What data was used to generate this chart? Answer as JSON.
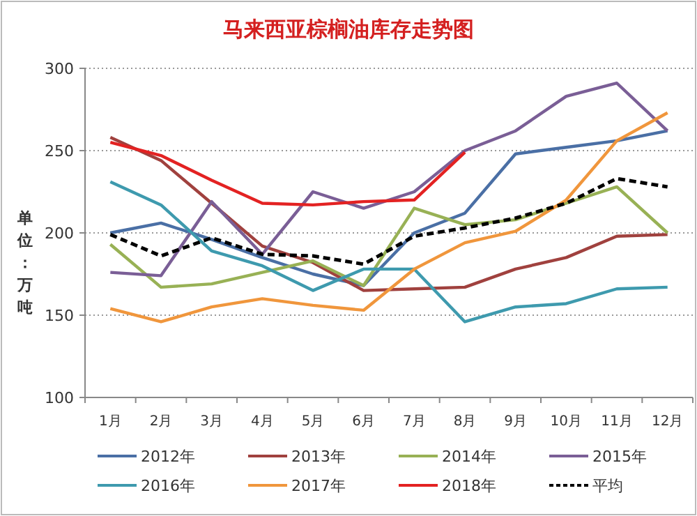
{
  "chart_data": {
    "type": "line",
    "title": "马来西亚棕榈油库存走势图",
    "ylabel": "单位：万吨",
    "categories": [
      "1月",
      "2月",
      "3月",
      "4月",
      "5月",
      "6月",
      "7月",
      "8月",
      "9月",
      "10月",
      "11月",
      "12月"
    ],
    "ylim": [
      100,
      300
    ],
    "yticks": [
      100,
      150,
      200,
      250,
      300
    ],
    "grid": "y",
    "legend": "bottom",
    "line_style": "solid",
    "series": [
      {
        "name": "2012年",
        "color": "#4a6fa5",
        "values": [
          200,
          206,
          196,
          185,
          175,
          168,
          200,
          212,
          248,
          252,
          256,
          262
        ]
      },
      {
        "name": "2013年",
        "color": "#a0413e",
        "values": [
          258,
          244,
          218,
          192,
          182,
          165,
          166,
          167,
          178,
          185,
          198,
          199
        ]
      },
      {
        "name": "2014年",
        "color": "#98b155",
        "values": [
          193,
          167,
          169,
          176,
          183,
          168,
          215,
          205,
          208,
          218,
          228,
          200
        ]
      },
      {
        "name": "2015年",
        "color": "#7a5e96",
        "values": [
          176,
          174,
          219,
          187,
          225,
          215,
          225,
          250,
          262,
          283,
          291,
          262
        ]
      },
      {
        "name": "2016年",
        "color": "#3e9aae",
        "values": [
          231,
          217,
          189,
          180,
          165,
          178,
          178,
          146,
          155,
          157,
          166,
          167
        ]
      },
      {
        "name": "2017年",
        "color": "#f0963c",
        "values": [
          154,
          146,
          155,
          160,
          156,
          153,
          178,
          194,
          201,
          220,
          256,
          273
        ]
      },
      {
        "name": "2018年",
        "color": "#e32222",
        "values": [
          255,
          247,
          232,
          218,
          217,
          219,
          220,
          249,
          null,
          null,
          null,
          null
        ]
      },
      {
        "name": "平均",
        "color": "#000000",
        "line_style": "dashed",
        "values": [
          199,
          186,
          197,
          187,
          186,
          181,
          198,
          203,
          209,
          218,
          233,
          228
        ]
      }
    ]
  }
}
